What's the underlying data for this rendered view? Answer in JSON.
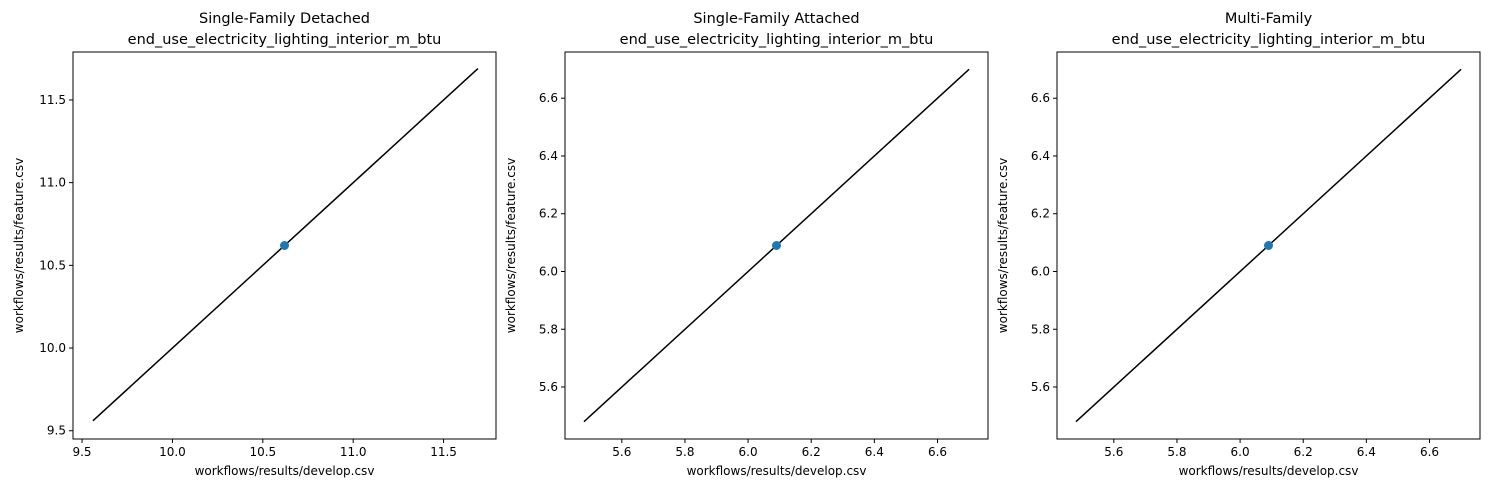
{
  "chart_data": [
    {
      "type": "scatter",
      "title_line1": "Single-Family Detached",
      "title_line2": "end_use_electricity_lighting_interior_m_btu",
      "xlabel": "workflows/results/develop.csv",
      "ylabel": "workflows/results/feature.csv",
      "xlim": [
        9.45,
        11.79
      ],
      "ylim": [
        9.45,
        11.79
      ],
      "xticks": [
        9.5,
        10.0,
        10.5,
        11.0,
        11.5
      ],
      "xtick_labels": [
        "9.5",
        "10.0",
        "10.5",
        "11.0",
        "11.5"
      ],
      "yticks": [
        9.5,
        10.0,
        10.5,
        11.0,
        11.5
      ],
      "ytick_labels": [
        "9.5",
        "10.0",
        "10.5",
        "11.0",
        "11.5"
      ],
      "points": [
        {
          "x": 10.62,
          "y": 10.62
        }
      ],
      "reference_line": {
        "from": [
          9.56,
          9.56
        ],
        "to": [
          11.69,
          11.69
        ]
      },
      "grid": false,
      "legend": "none"
    },
    {
      "type": "scatter",
      "title_line1": "Single-Family Attached",
      "title_line2": "end_use_electricity_lighting_interior_m_btu",
      "xlabel": "workflows/results/develop.csv",
      "ylabel": "workflows/results/feature.csv",
      "xlim": [
        5.42,
        6.76
      ],
      "ylim": [
        5.42,
        6.76
      ],
      "xticks": [
        5.6,
        5.8,
        6.0,
        6.2,
        6.4,
        6.6
      ],
      "xtick_labels": [
        "5.6",
        "5.8",
        "6.0",
        "6.2",
        "6.4",
        "6.6"
      ],
      "yticks": [
        5.6,
        5.8,
        6.0,
        6.2,
        6.4,
        6.6
      ],
      "ytick_labels": [
        "5.6",
        "5.8",
        "6.0",
        "6.2",
        "6.4",
        "6.6"
      ],
      "points": [
        {
          "x": 6.09,
          "y": 6.09
        }
      ],
      "reference_line": {
        "from": [
          5.48,
          5.48
        ],
        "to": [
          6.7,
          6.7
        ]
      },
      "grid": false,
      "legend": "none"
    },
    {
      "type": "scatter",
      "title_line1": "Multi-Family",
      "title_line2": "end_use_electricity_lighting_interior_m_btu",
      "xlabel": "workflows/results/develop.csv",
      "ylabel": "workflows/results/feature.csv",
      "xlim": [
        5.42,
        6.76
      ],
      "ylim": [
        5.42,
        6.76
      ],
      "xticks": [
        5.6,
        5.8,
        6.0,
        6.2,
        6.4,
        6.6
      ],
      "xtick_labels": [
        "5.6",
        "5.8",
        "6.0",
        "6.2",
        "6.4",
        "6.6"
      ],
      "yticks": [
        5.6,
        5.8,
        6.0,
        6.2,
        6.4,
        6.6
      ],
      "ytick_labels": [
        "5.6",
        "5.8",
        "6.0",
        "6.2",
        "6.4",
        "6.6"
      ],
      "points": [
        {
          "x": 6.09,
          "y": 6.09
        }
      ],
      "reference_line": {
        "from": [
          5.48,
          5.48
        ],
        "to": [
          6.7,
          6.7
        ]
      },
      "grid": false,
      "legend": "none"
    }
  ],
  "colors": {
    "point": "#1f77b4",
    "reference_line": "#000000",
    "axes": "#000000",
    "background": "#ffffff"
  }
}
